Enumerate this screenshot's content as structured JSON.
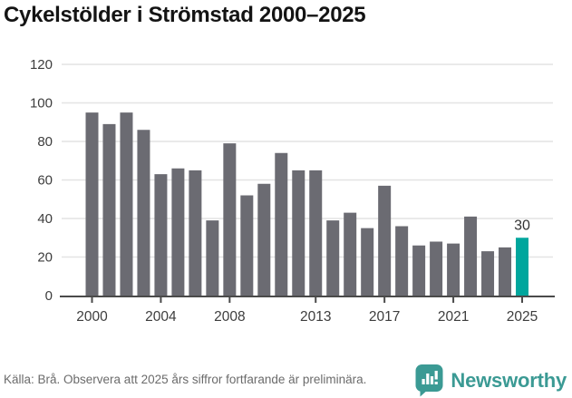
{
  "title": "Cykelstölder i Strömstad 2000–2025",
  "chart_data": {
    "type": "bar",
    "title": "Cykelstölder i Strömstad 2000–2025",
    "categories": [
      "2000",
      "2001",
      "2002",
      "2003",
      "2004",
      "2005",
      "2006",
      "2007",
      "2008",
      "2009",
      "2010",
      "2011",
      "2012",
      "2013",
      "2014",
      "2015",
      "2016",
      "2017",
      "2018",
      "2019",
      "2020",
      "2021",
      "2022",
      "2023",
      "2024",
      "2025"
    ],
    "values": [
      95,
      89,
      95,
      86,
      63,
      66,
      65,
      39,
      79,
      52,
      58,
      74,
      65,
      65,
      39,
      43,
      35,
      57,
      36,
      26,
      28,
      27,
      41,
      23,
      25,
      30
    ],
    "xlabel": "",
    "ylabel": "",
    "ylim": [
      0,
      120
    ],
    "y_ticks": [
      0,
      20,
      40,
      60,
      80,
      100,
      120
    ],
    "x_tick_labels": [
      "2000",
      "2004",
      "2008",
      "2013",
      "2017",
      "2021",
      "2025"
    ],
    "x_tick_indices": [
      0,
      4,
      8,
      13,
      17,
      21,
      25
    ],
    "grid": true,
    "legend_position": "none",
    "bar_color": "#6b6b72",
    "gridline_color": "#e4e4e4",
    "axis_color": "#4a4a4a",
    "tick_label_color": "#3d3d3d",
    "highlight": {
      "index": 25,
      "label": "30",
      "color": "#00a69d"
    }
  },
  "footer": {
    "source_note": "Källa: Brå. Observera att 2025 års siffror fortfarande är preliminära."
  },
  "branding": {
    "name": "Newsworthy",
    "color": "#3b9a94",
    "icon": "newsworthy-speech-bubble-chart-icon"
  }
}
